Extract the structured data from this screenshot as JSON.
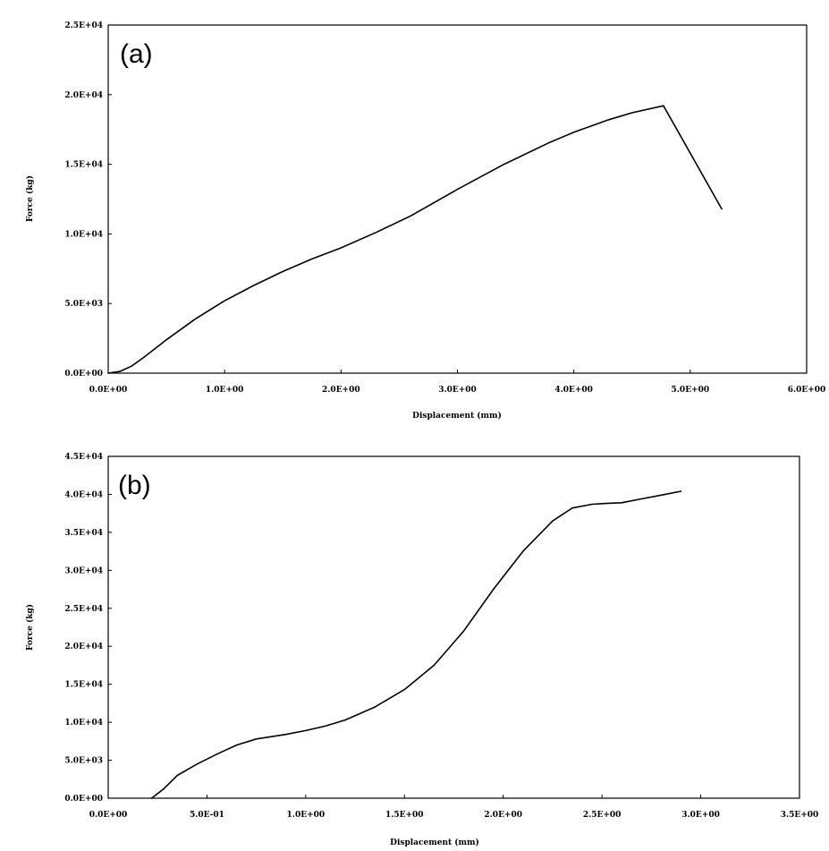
{
  "chart_data": [
    {
      "type": "line",
      "panel_label": "(a)",
      "xlabel": "Displacement (mm)",
      "ylabel": "Force (kg)",
      "xlim": [
        0,
        6
      ],
      "ylim": [
        0,
        25000
      ],
      "x_ticks": [
        0,
        1,
        2,
        3,
        4,
        5,
        6
      ],
      "y_ticks": [
        0,
        5000,
        10000,
        15000,
        20000,
        25000
      ],
      "x_tick_labels": [
        "0.0E+00",
        "1.0E+00",
        "2.0E+00",
        "3.0E+00",
        "4.0E+00",
        "5.0E+00",
        "6.0E+00"
      ],
      "y_tick_labels": [
        "0.0E+00",
        "5.0E+03",
        "1.0E+04",
        "1.5E+04",
        "2.0E+04",
        "2.5E+04"
      ],
      "grid": false,
      "series": [
        {
          "x": [
            0.0,
            0.1,
            0.2,
            0.3,
            0.5,
            0.75,
            1.0,
            1.25,
            1.5,
            1.75,
            2.0,
            2.3,
            2.6,
            3.0,
            3.4,
            3.8,
            4.0,
            4.3,
            4.5,
            4.77,
            5.27
          ],
          "y": [
            0,
            120,
            500,
            1100,
            2400,
            3900,
            5200,
            6300,
            7300,
            8200,
            9000,
            10100,
            11300,
            13200,
            15000,
            16600,
            17300,
            18200,
            18700,
            19200,
            11800
          ]
        }
      ]
    },
    {
      "type": "line",
      "panel_label": "(b)",
      "xlabel": "Displacement (mm)",
      "ylabel": "Force (kg)",
      "xlim": [
        0,
        3.5
      ],
      "ylim": [
        0,
        45000
      ],
      "x_ticks": [
        0,
        0.5,
        1.0,
        1.5,
        2.0,
        2.5,
        3.0,
        3.5
      ],
      "y_ticks": [
        0,
        5000,
        10000,
        15000,
        20000,
        25000,
        30000,
        35000,
        40000,
        45000
      ],
      "x_tick_labels": [
        "0.0E+00",
        "5.0E-01",
        "1.0E+00",
        "1.5E+00",
        "2.0E+00",
        "2.5E+00",
        "3.0E+00",
        "3.5E+00"
      ],
      "y_tick_labels": [
        "0.0E+00",
        "5.0E+03",
        "1.0E+04",
        "1.5E+04",
        "2.0E+04",
        "2.5E+04",
        "3.0E+04",
        "3.5E+04",
        "4.0E+04",
        "4.5E+04"
      ],
      "grid": false,
      "series": [
        {
          "x": [
            0.22,
            0.28,
            0.35,
            0.45,
            0.55,
            0.65,
            0.75,
            0.9,
            1.0,
            1.1,
            1.2,
            1.35,
            1.5,
            1.65,
            1.8,
            1.95,
            2.1,
            2.25,
            2.35,
            2.45,
            2.52,
            2.6,
            2.7,
            2.8,
            2.9
          ],
          "y": [
            0,
            1200,
            3000,
            4500,
            5800,
            7000,
            7800,
            8400,
            8900,
            9500,
            10300,
            12000,
            14300,
            17500,
            22000,
            27500,
            32500,
            36500,
            38200,
            38700,
            38800,
            38900,
            39400,
            39900,
            40400
          ]
        }
      ]
    }
  ]
}
